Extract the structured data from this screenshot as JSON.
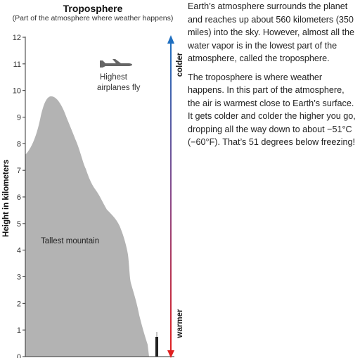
{
  "title": "Troposphere",
  "subtitle": "(Part of the atmosphere where weather happens)",
  "axis": {
    "ylabel": "Height in kilometers",
    "ticks": [
      "0",
      "1",
      "2",
      "3",
      "4",
      "5",
      "6",
      "7",
      "8",
      "9",
      "10",
      "11",
      "12"
    ],
    "ylim": [
      0,
      12
    ]
  },
  "labels": {
    "airplanes": [
      "Highest",
      "airplanes fly"
    ],
    "mountain": "Tallest mountain",
    "colder": "colder",
    "warmer": "warmer"
  },
  "colors": {
    "mountain": "#b3b3b3",
    "cold": "#1f6fc0",
    "warm": "#e02020",
    "plane": "#666666",
    "tower": "#222222"
  },
  "icons": [
    "airplane-icon",
    "tower-icon"
  ],
  "paragraphs": [
    "Earth’s atmosphere surrounds the planet and reaches up about 560 kilometers (350 miles) into the sky. However, almost all the water vapor is in the lowest part of the atmosphere, called the troposphere.",
    "The troposphere is where weather happens. In this part of the atmosphere, the air is warmest close to Earth’s surface. It gets colder and colder the higher you go, dropping all the way down to about −51°C (−60°F). That’s 51 degrees below freezing!"
  ]
}
